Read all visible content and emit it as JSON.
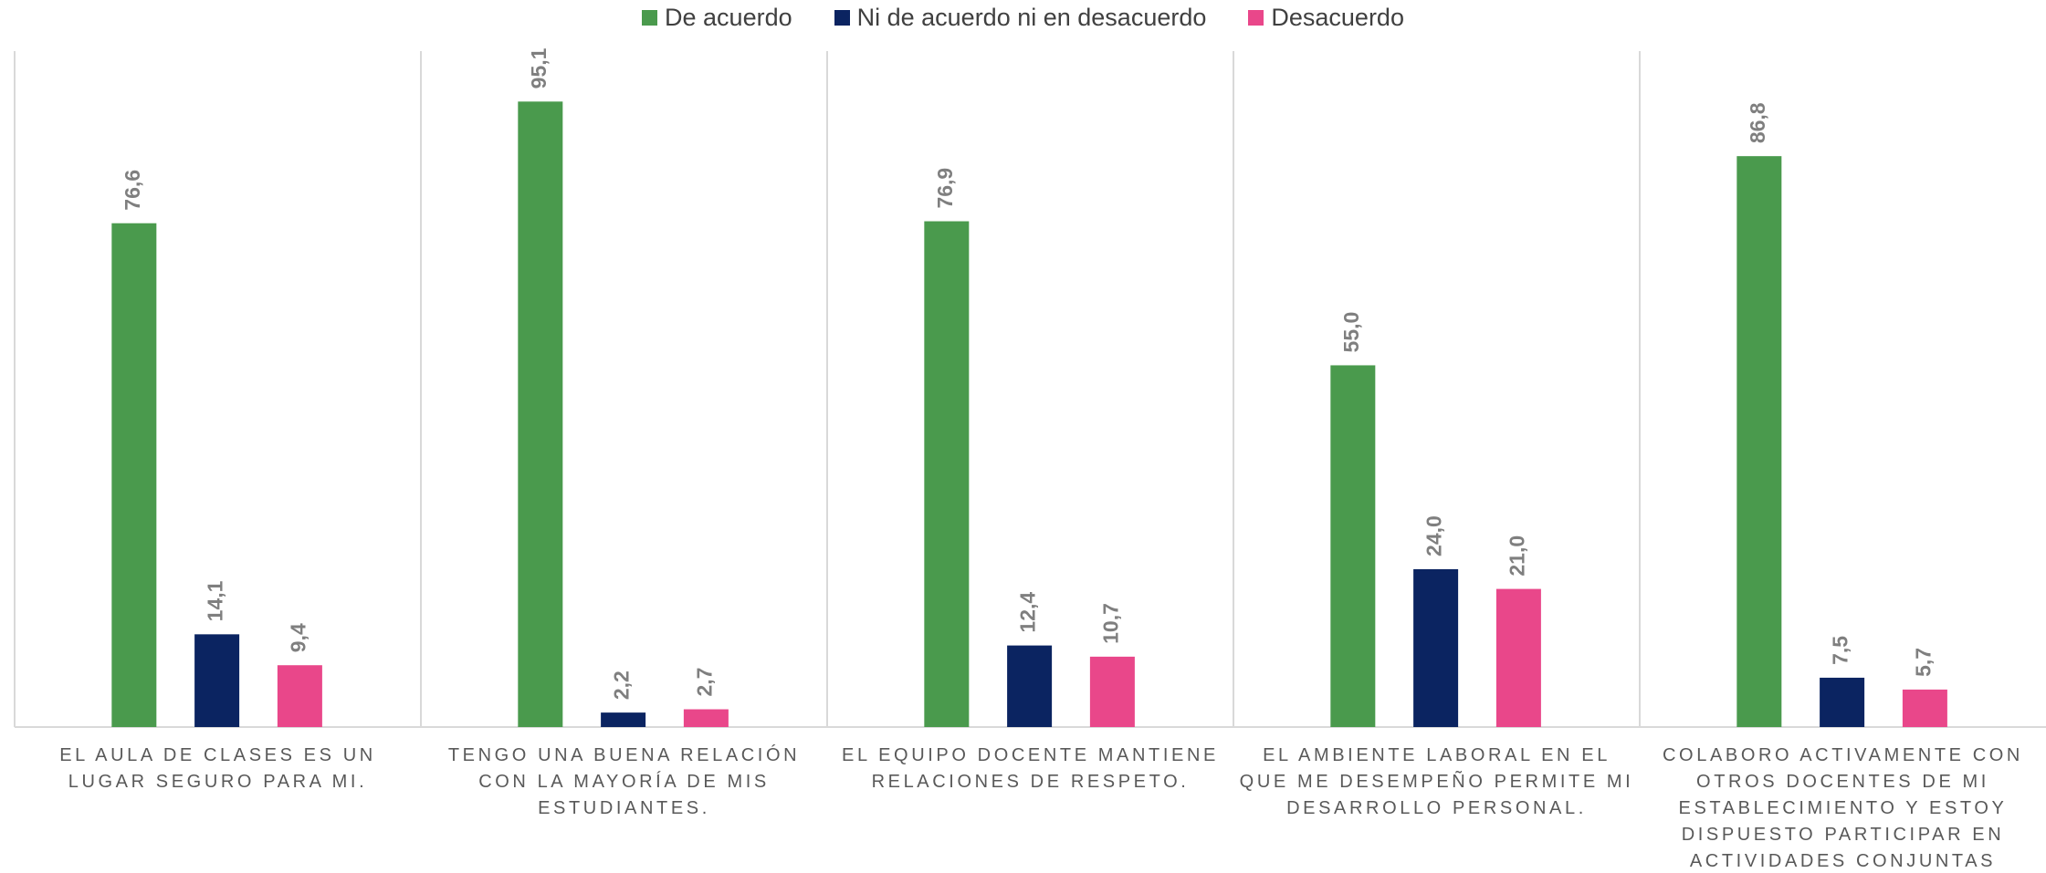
{
  "chart_data": {
    "type": "bar",
    "categories": [
      "EL AULA DE CLASES ES UN LUGAR SEGURO PARA MI.",
      "TENGO UNA BUENA RELACIÓN CON LA MAYORÍA DE MIS ESTUDIANTES.",
      "EL EQUIPO DOCENTE MANTIENE RELACIONES DE RESPETO.",
      "EL AMBIENTE LABORAL EN EL QUE ME DESEMPEÑO PERMITE MI DESARROLLO PERSONAL.",
      "COLABORO ACTIVAMENTE CON OTROS DOCENTES DE MI ESTABLECIMIENTO Y ESTOY DISPUESTO PARTICIPAR EN ACTIVIDADES CONJUNTAS"
    ],
    "series": [
      {
        "name": "De acuerdo",
        "color": "#4a9a4d",
        "values": [
          76.6,
          95.1,
          76.9,
          55.0,
          86.8
        ],
        "value_labels": [
          "76,6",
          "95,1",
          "76,9",
          "55,0",
          "86,8"
        ]
      },
      {
        "name": "Ni de acuerdo ni en desacuerdo",
        "color": "#0b2461",
        "values": [
          14.1,
          2.2,
          12.4,
          24.0,
          7.5
        ],
        "value_labels": [
          "14,1",
          "2,2",
          "12,4",
          "24,0",
          "7,5"
        ]
      },
      {
        "name": "Desacuerdo",
        "color": "#e9478a",
        "values": [
          9.4,
          2.7,
          10.7,
          21.0,
          5.7
        ],
        "value_labels": [
          "9,4",
          "2,7",
          "10,7",
          "21,0",
          "5,7"
        ]
      }
    ],
    "ylim": [
      0,
      100
    ],
    "legend": "top"
  }
}
